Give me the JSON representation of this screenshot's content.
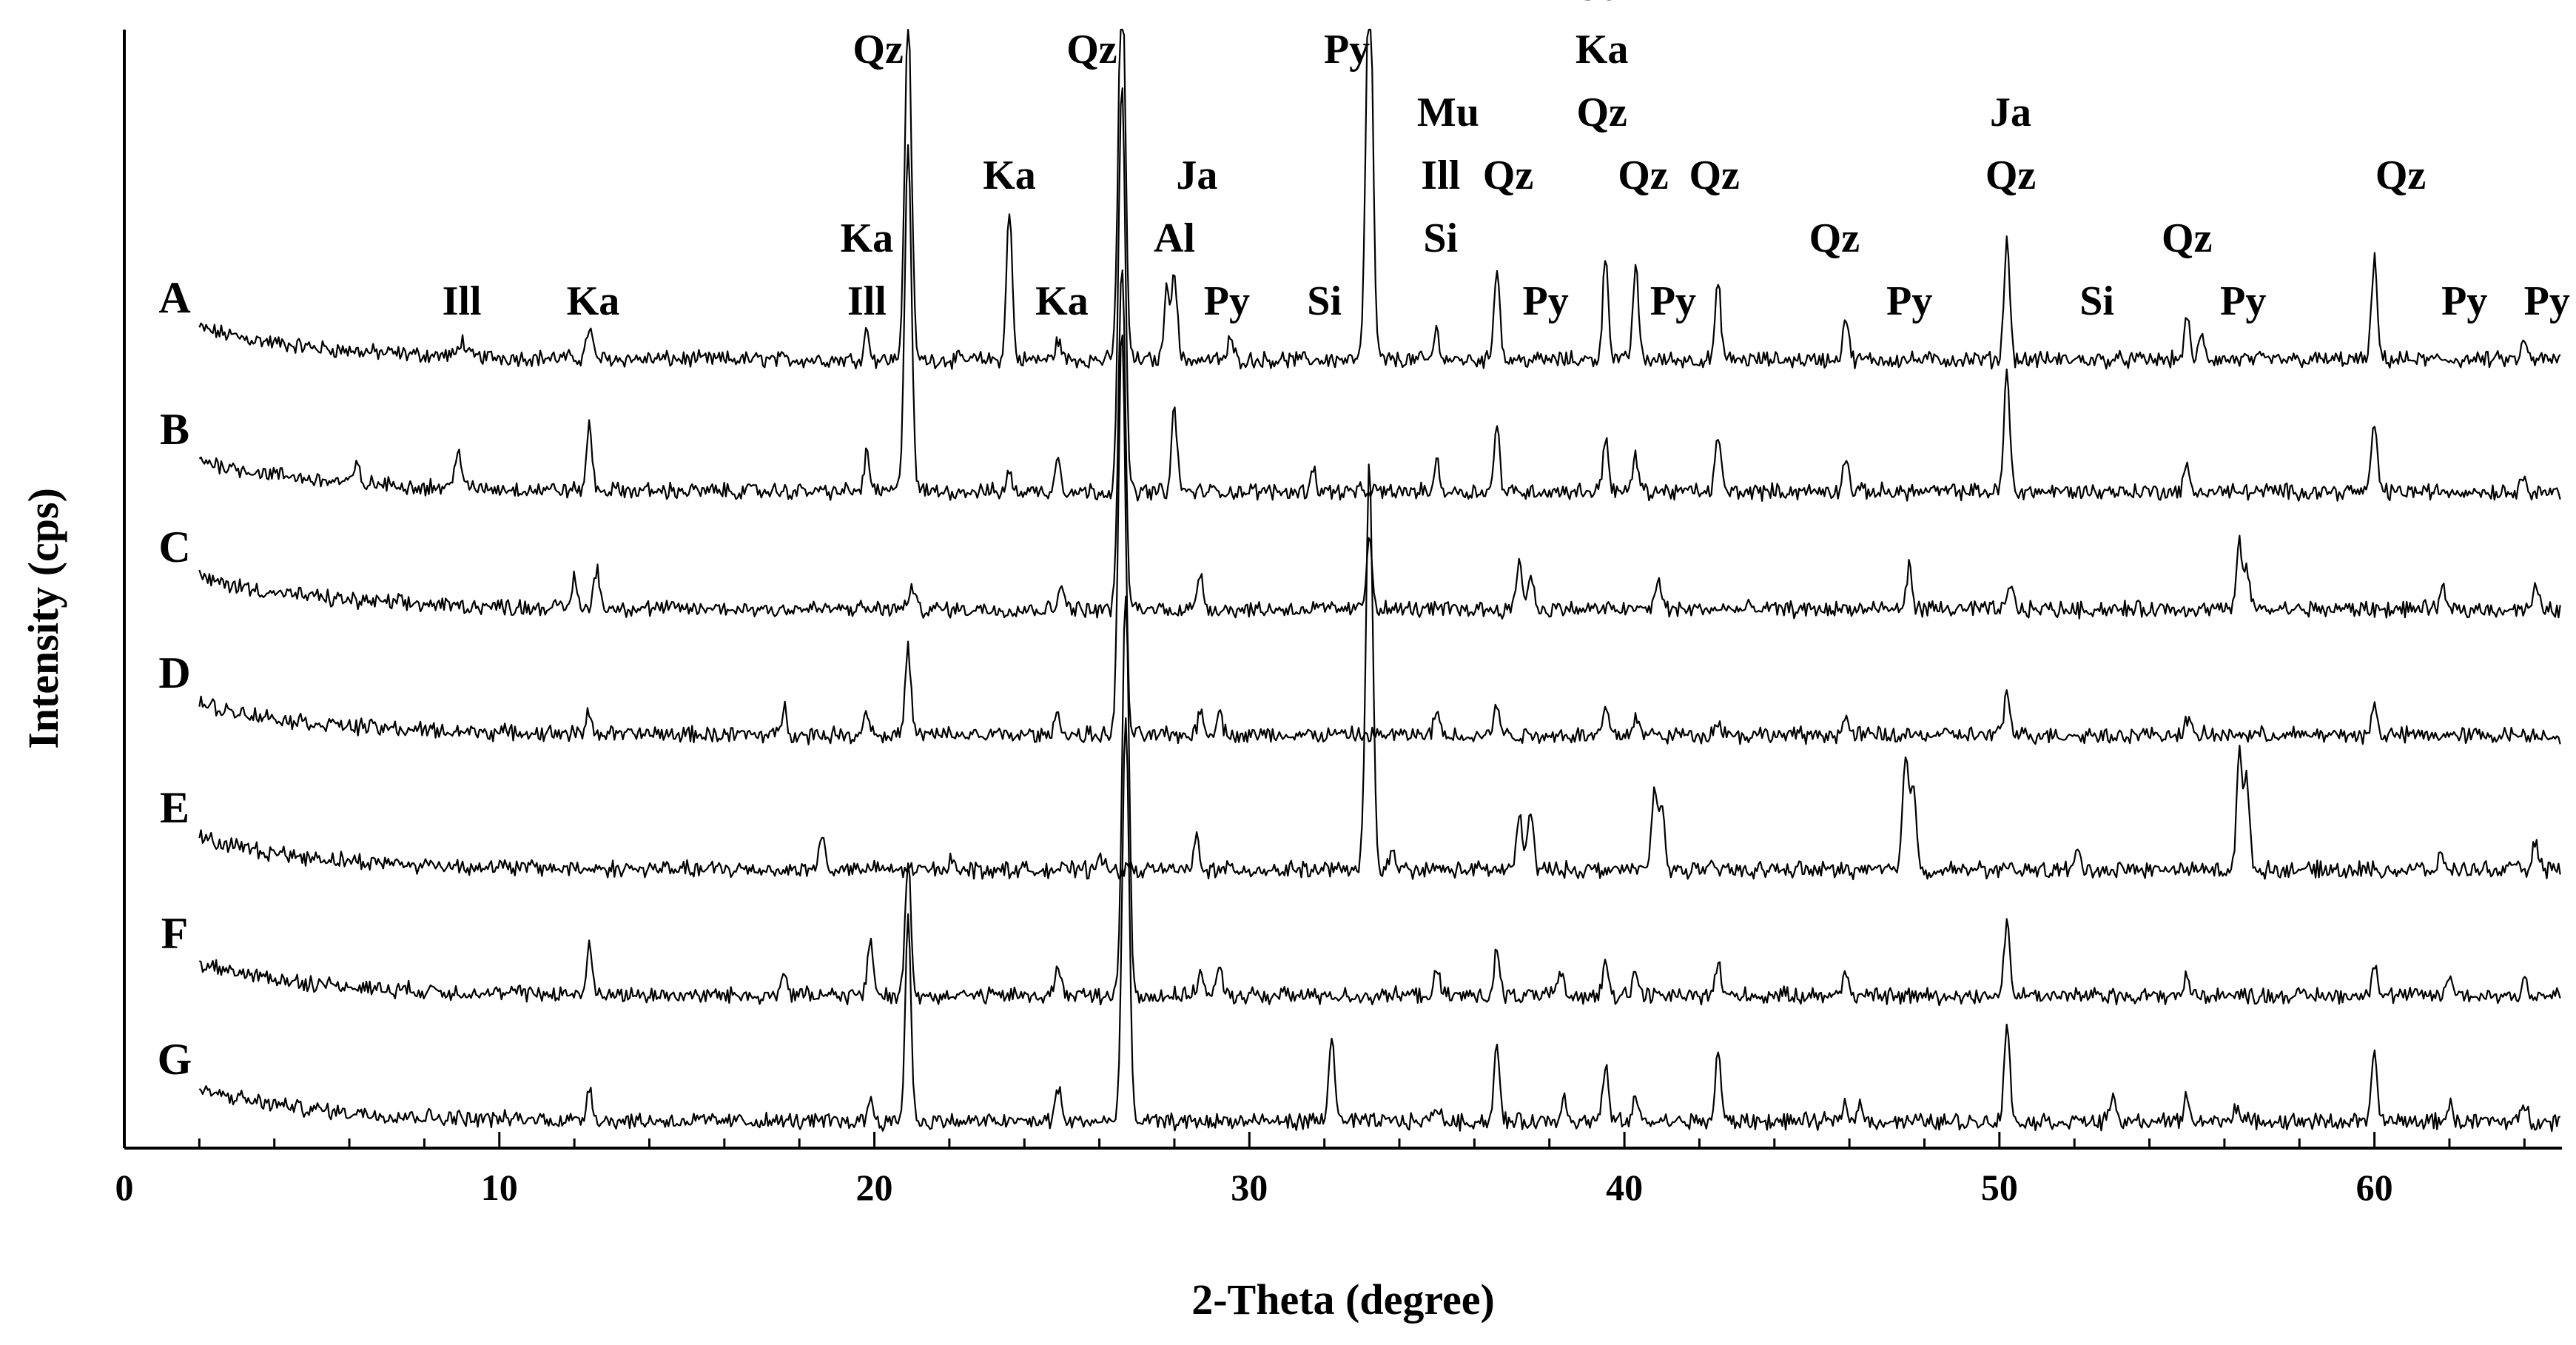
{
  "chart_data": {
    "type": "line",
    "xlabel": "2-Theta (degree)",
    "ylabel": "Intensity (cps)",
    "xlim": [
      0,
      65
    ],
    "x_ticks": [
      0,
      10,
      20,
      30,
      40,
      50,
      60
    ],
    "minor_tick_step": 2,
    "y_ticks_shown": false,
    "x_range_of_scans": [
      2,
      65
    ],
    "series": [
      {
        "name": "A",
        "peaks": [
          [
            9,
            0.3
          ],
          [
            12.4,
            0.55
          ],
          [
            19.8,
            0.5
          ],
          [
            20.9,
            6.0
          ],
          [
            23.6,
            2.6
          ],
          [
            24.9,
            0.35
          ],
          [
            26.6,
            7.0
          ],
          [
            27.8,
            1.2
          ],
          [
            28.0,
            1.5
          ],
          [
            29.5,
            0.35
          ],
          [
            33.2,
            7.0
          ],
          [
            35.0,
            0.5
          ],
          [
            36.6,
            1.65
          ],
          [
            39.5,
            1.8
          ],
          [
            40.3,
            1.6
          ],
          [
            42.5,
            1.3
          ],
          [
            45.9,
            0.75
          ],
          [
            50.2,
            2.1
          ],
          [
            55.0,
            0.7
          ],
          [
            55.4,
            0.4
          ],
          [
            60.0,
            1.7
          ],
          [
            64.0,
            0.3
          ]
        ]
      },
      {
        "name": "B",
        "peaks": [
          [
            6.2,
            0.3
          ],
          [
            8.9,
            0.75
          ],
          [
            12.4,
            1.1
          ],
          [
            19.8,
            0.65
          ],
          [
            20.9,
            6.0
          ],
          [
            23.6,
            0.3
          ],
          [
            24.9,
            0.6
          ],
          [
            26.6,
            7.0
          ],
          [
            28.0,
            1.4
          ],
          [
            31.7,
            0.4
          ],
          [
            35.0,
            0.5
          ],
          [
            36.6,
            1.1
          ],
          [
            39.5,
            0.95
          ],
          [
            40.3,
            0.6
          ],
          [
            42.5,
            0.95
          ],
          [
            45.9,
            0.6
          ],
          [
            50.2,
            2.1
          ],
          [
            55.0,
            0.4
          ],
          [
            60.0,
            1.2
          ],
          [
            64.0,
            0.3
          ]
        ]
      },
      {
        "name": "C",
        "peaks": [
          [
            12.0,
            0.5
          ],
          [
            12.6,
            0.7
          ],
          [
            21.0,
            0.4
          ],
          [
            25.0,
            0.5
          ],
          [
            26.6,
            6.0
          ],
          [
            28.7,
            0.65
          ],
          [
            33.2,
            1.3
          ],
          [
            37.2,
            0.85
          ],
          [
            37.5,
            0.6
          ],
          [
            40.9,
            0.55
          ],
          [
            47.6,
            0.75
          ],
          [
            50.3,
            0.4
          ],
          [
            56.4,
            1.1
          ],
          [
            56.6,
            0.7
          ],
          [
            61.8,
            0.35
          ],
          [
            64.3,
            0.35
          ]
        ]
      },
      {
        "name": "D",
        "peaks": [
          [
            12.4,
            0.4
          ],
          [
            17.6,
            0.45
          ],
          [
            19.8,
            0.45
          ],
          [
            20.9,
            1.5
          ],
          [
            24.9,
            0.4
          ],
          [
            26.6,
            7.0
          ],
          [
            28.7,
            0.45
          ],
          [
            29.2,
            0.45
          ],
          [
            35.0,
            0.4
          ],
          [
            36.6,
            0.55
          ],
          [
            39.5,
            0.5
          ],
          [
            40.3,
            0.35
          ],
          [
            42.5,
            0.3
          ],
          [
            45.9,
            0.3
          ],
          [
            50.2,
            0.75
          ],
          [
            55.0,
            0.3
          ],
          [
            60.0,
            0.5
          ]
        ]
      },
      {
        "name": "E",
        "peaks": [
          [
            18.6,
            0.6
          ],
          [
            22.1,
            0.25
          ],
          [
            26.0,
            0.3
          ],
          [
            28.6,
            0.55
          ],
          [
            33.2,
            7.0
          ],
          [
            33.8,
            0.3
          ],
          [
            37.2,
            0.95
          ],
          [
            37.5,
            1.05
          ],
          [
            40.8,
            1.35
          ],
          [
            41.0,
            1.1
          ],
          [
            47.5,
            2.0
          ],
          [
            47.7,
            1.5
          ],
          [
            52.1,
            0.3
          ],
          [
            56.4,
            2.0
          ],
          [
            56.6,
            1.5
          ],
          [
            61.8,
            0.25
          ],
          [
            64.3,
            0.5
          ]
        ]
      },
      {
        "name": "F",
        "peaks": [
          [
            12.4,
            0.8
          ],
          [
            17.6,
            0.45
          ],
          [
            19.9,
            0.95
          ],
          [
            20.9,
            2.4
          ],
          [
            24.9,
            0.55
          ],
          [
            26.7,
            7.0
          ],
          [
            28.7,
            0.45
          ],
          [
            29.2,
            0.45
          ],
          [
            35.0,
            0.4
          ],
          [
            36.6,
            0.75
          ],
          [
            38.3,
            0.35
          ],
          [
            39.5,
            0.7
          ],
          [
            40.3,
            0.45
          ],
          [
            42.5,
            0.6
          ],
          [
            45.9,
            0.45
          ],
          [
            50.2,
            1.3
          ],
          [
            55.0,
            0.3
          ],
          [
            60.0,
            0.6
          ],
          [
            62.0,
            0.35
          ],
          [
            64.0,
            0.3
          ]
        ]
      },
      {
        "name": "G",
        "peaks": [
          [
            12.4,
            0.6
          ],
          [
            19.9,
            0.4
          ],
          [
            20.9,
            3.6
          ],
          [
            24.9,
            0.6
          ],
          [
            26.7,
            7.0
          ],
          [
            32.2,
            1.55
          ],
          [
            35.0,
            0.3
          ],
          [
            36.6,
            1.3
          ],
          [
            38.4,
            0.45
          ],
          [
            39.5,
            0.95
          ],
          [
            40.3,
            0.4
          ],
          [
            42.5,
            1.2
          ],
          [
            45.9,
            0.35
          ],
          [
            46.3,
            0.3
          ],
          [
            50.2,
            1.7
          ],
          [
            53.0,
            0.4
          ],
          [
            55.0,
            0.45
          ],
          [
            56.3,
            0.3
          ],
          [
            60.0,
            1.15
          ],
          [
            62.0,
            0.3
          ],
          [
            64.0,
            0.3
          ]
        ]
      }
    ],
    "peak_labels": [
      {
        "text": "Ill",
        "x": 9.0
      },
      {
        "text": "Ka",
        "x": 12.5
      },
      {
        "text": "Ka",
        "x": 19.8,
        "line": 1
      },
      {
        "text": "Ill",
        "x": 19.8,
        "line": 0
      },
      {
        "text": "Qz",
        "x": 20.1,
        "line": 4
      },
      {
        "text": "Ka",
        "x": 23.6,
        "line": 2
      },
      {
        "text": "Ka",
        "x": 25.0,
        "line": 0
      },
      {
        "text": "Qz",
        "x": 25.8,
        "line": 4
      },
      {
        "text": "Ja",
        "x": 28.6,
        "line": 2
      },
      {
        "text": "Al",
        "x": 28.0,
        "line": 1
      },
      {
        "text": "Py",
        "x": 29.4,
        "line": 0
      },
      {
        "text": "Si",
        "x": 32.0,
        "line": 0
      },
      {
        "text": "Py",
        "x": 32.6,
        "line": 4
      },
      {
        "text": "Mu",
        "x": 35.3,
        "line": 3
      },
      {
        "text": "Ill",
        "x": 35.1,
        "line": 2
      },
      {
        "text": "Si",
        "x": 35.1,
        "line": 1
      },
      {
        "text": "Qz",
        "x": 36.9,
        "line": 2
      },
      {
        "text": "Py",
        "x": 37.9,
        "line": 0
      },
      {
        "text": "Ja",
        "x": 39.4,
        "line": 5
      },
      {
        "text": "Ka",
        "x": 39.4,
        "line": 4
      },
      {
        "text": "Qz",
        "x": 39.4,
        "line": 3
      },
      {
        "text": "Qz",
        "x": 40.5,
        "line": 2
      },
      {
        "text": "Py",
        "x": 41.3,
        "line": 0
      },
      {
        "text": "Qz",
        "x": 42.4,
        "line": 2
      },
      {
        "text": "Qz",
        "x": 45.6,
        "line": 1
      },
      {
        "text": "Py",
        "x": 47.6,
        "line": 0
      },
      {
        "text": "Ja",
        "x": 50.3,
        "line": 3
      },
      {
        "text": "Qz",
        "x": 50.3,
        "line": 2
      },
      {
        "text": "Si",
        "x": 52.6,
        "line": 0
      },
      {
        "text": "Qz",
        "x": 55.0,
        "line": 1
      },
      {
        "text": "Py",
        "x": 56.5,
        "line": 0
      },
      {
        "text": "Qz",
        "x": 60.7,
        "line": 2
      },
      {
        "text": "Py",
        "x": 62.4,
        "line": 0
      },
      {
        "text": "Py",
        "x": 64.6,
        "line": 0
      }
    ]
  }
}
